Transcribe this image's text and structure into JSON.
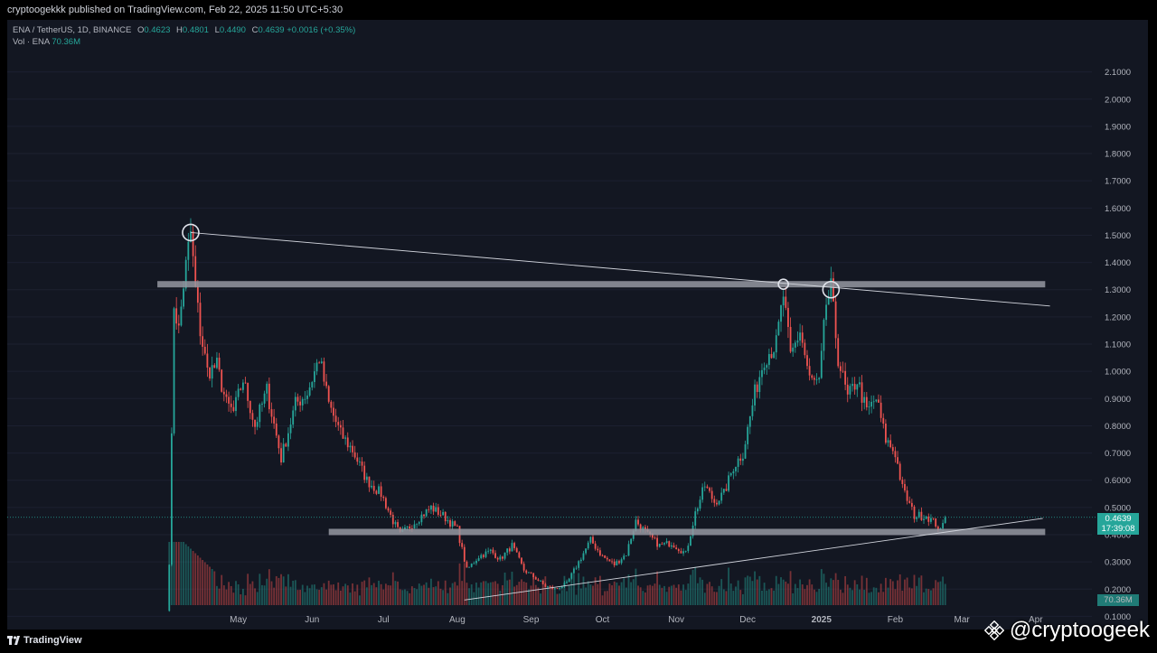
{
  "header": {
    "published_text": "cryptoogekkk published on TradingView.com, Feb 22, 2025 11:50 UTC+5:30"
  },
  "legend": {
    "symbol": "ENA / TetherUS, 1D, BINANCE",
    "o_label": "O",
    "o_value": "0.4623",
    "h_label": "H",
    "h_value": "0.4801",
    "l_label": "L",
    "l_value": "0.4490",
    "c_label": "C",
    "c_value": "0.4639",
    "change": "+0.0016 (+0.35%)",
    "vol_label": "Vol · ENA",
    "vol_value": "70.36M"
  },
  "footer": {
    "brand": "TradingView",
    "watermark": "@cryptoogeek"
  },
  "colors": {
    "background": "#131722",
    "up": "#26a69a",
    "down": "#ef5350",
    "axis_text": "#b2b5be",
    "zone": "#9598a1",
    "trendline": "#d1d4dc"
  },
  "icons": {
    "brand": "tradingview-logo-icon",
    "watermark": "binance-logo-icon"
  },
  "chart_data": {
    "type": "candlestick",
    "symbol": "ENA / TetherUS",
    "timeframe": "1D",
    "exchange": "BINANCE",
    "y_axis": {
      "scale": "linear",
      "range": [
        0.0,
        2.15
      ],
      "ticks": [
        "2.1000",
        "2.0000",
        "1.9000",
        "1.8000",
        "1.7000",
        "1.6000",
        "1.5000",
        "1.4000",
        "1.3000",
        "1.2000",
        "1.1000",
        "1.0000",
        "0.9000",
        "0.8000",
        "0.7000",
        "0.6000",
        "0.5000",
        "0.4000",
        "0.3000",
        "0.2000",
        "0.1000"
      ]
    },
    "x_axis": {
      "start_date": "2024-04-02",
      "ticks": [
        {
          "label": "May",
          "date": "2024-05-01"
        },
        {
          "label": "Jun",
          "date": "2024-06-01"
        },
        {
          "label": "Jul",
          "date": "2024-07-01"
        },
        {
          "label": "Aug",
          "date": "2024-08-01"
        },
        {
          "label": "Sep",
          "date": "2024-09-01"
        },
        {
          "label": "Oct",
          "date": "2024-10-01"
        },
        {
          "label": "Nov",
          "date": "2024-11-01"
        },
        {
          "label": "Dec",
          "date": "2024-12-01"
        },
        {
          "label": "2025",
          "date": "2025-01-01",
          "bold": true
        },
        {
          "label": "Feb",
          "date": "2025-02-01"
        },
        {
          "label": "Mar",
          "date": "2025-03-01"
        },
        {
          "label": "Apr",
          "date": "2025-04-01"
        }
      ]
    },
    "last_price": {
      "value": 0.4639,
      "label": "0.4639",
      "countdown": "17:39:08"
    },
    "volume_badge": "70.36M",
    "price_path": [
      {
        "date": "2024-04-02",
        "price": 0.3
      },
      {
        "date": "2024-04-03",
        "price": 0.75
      },
      {
        "date": "2024-04-04",
        "price": 1.25
      },
      {
        "date": "2024-04-06",
        "price": 1.15
      },
      {
        "date": "2024-04-08",
        "price": 1.32
      },
      {
        "date": "2024-04-10",
        "price": 1.45
      },
      {
        "date": "2024-04-11",
        "price": 1.51
      },
      {
        "date": "2024-04-13",
        "price": 1.3
      },
      {
        "date": "2024-04-15",
        "price": 1.15
      },
      {
        "date": "2024-04-18",
        "price": 1.0
      },
      {
        "date": "2024-04-22",
        "price": 1.02
      },
      {
        "date": "2024-04-26",
        "price": 0.88
      },
      {
        "date": "2024-04-29",
        "price": 0.85
      },
      {
        "date": "2024-05-03",
        "price": 0.97
      },
      {
        "date": "2024-05-08",
        "price": 0.8
      },
      {
        "date": "2024-05-13",
        "price": 0.93
      },
      {
        "date": "2024-05-19",
        "price": 0.68
      },
      {
        "date": "2024-05-25",
        "price": 0.88
      },
      {
        "date": "2024-05-30",
        "price": 0.92
      },
      {
        "date": "2024-06-04",
        "price": 1.05
      },
      {
        "date": "2024-06-08",
        "price": 0.88
      },
      {
        "date": "2024-06-13",
        "price": 0.77
      },
      {
        "date": "2024-06-18",
        "price": 0.71
      },
      {
        "date": "2024-06-24",
        "price": 0.6
      },
      {
        "date": "2024-06-30",
        "price": 0.55
      },
      {
        "date": "2024-07-05",
        "price": 0.45
      },
      {
        "date": "2024-07-08",
        "price": 0.4
      },
      {
        "date": "2024-07-12",
        "price": 0.43
      },
      {
        "date": "2024-07-17",
        "price": 0.47
      },
      {
        "date": "2024-07-21",
        "price": 0.5
      },
      {
        "date": "2024-07-26",
        "price": 0.47
      },
      {
        "date": "2024-08-01",
        "price": 0.42
      },
      {
        "date": "2024-08-05",
        "price": 0.27
      },
      {
        "date": "2024-08-10",
        "price": 0.32
      },
      {
        "date": "2024-08-15",
        "price": 0.34
      },
      {
        "date": "2024-08-19",
        "price": 0.31
      },
      {
        "date": "2024-08-24",
        "price": 0.36
      },
      {
        "date": "2024-08-29",
        "price": 0.27
      },
      {
        "date": "2024-09-03",
        "price": 0.24
      },
      {
        "date": "2024-09-07",
        "price": 0.21
      },
      {
        "date": "2024-09-11",
        "price": 0.2
      },
      {
        "date": "2024-09-16",
        "price": 0.22
      },
      {
        "date": "2024-09-21",
        "price": 0.3
      },
      {
        "date": "2024-09-26",
        "price": 0.38
      },
      {
        "date": "2024-10-01",
        "price": 0.32
      },
      {
        "date": "2024-10-06",
        "price": 0.29
      },
      {
        "date": "2024-10-11",
        "price": 0.33
      },
      {
        "date": "2024-10-15",
        "price": 0.45
      },
      {
        "date": "2024-10-20",
        "price": 0.4
      },
      {
        "date": "2024-10-25",
        "price": 0.36
      },
      {
        "date": "2024-10-30",
        "price": 0.37
      },
      {
        "date": "2024-11-05",
        "price": 0.33
      },
      {
        "date": "2024-11-09",
        "price": 0.48
      },
      {
        "date": "2024-11-13",
        "price": 0.58
      },
      {
        "date": "2024-11-17",
        "price": 0.52
      },
      {
        "date": "2024-11-21",
        "price": 0.55
      },
      {
        "date": "2024-11-25",
        "price": 0.65
      },
      {
        "date": "2024-11-29",
        "price": 0.7
      },
      {
        "date": "2024-12-04",
        "price": 0.92
      },
      {
        "date": "2024-12-08",
        "price": 1.05
      },
      {
        "date": "2024-12-13",
        "price": 1.1
      },
      {
        "date": "2024-12-16",
        "price": 1.28
      },
      {
        "date": "2024-12-19",
        "price": 1.05
      },
      {
        "date": "2024-12-23",
        "price": 1.15
      },
      {
        "date": "2024-12-27",
        "price": 0.97
      },
      {
        "date": "2024-12-31",
        "price": 0.95
      },
      {
        "date": "2025-01-03",
        "price": 1.25
      },
      {
        "date": "2025-01-05",
        "price": 1.3
      },
      {
        "date": "2025-01-08",
        "price": 1.05
      },
      {
        "date": "2025-01-12",
        "price": 0.9
      },
      {
        "date": "2025-01-16",
        "price": 0.97
      },
      {
        "date": "2025-01-20",
        "price": 0.85
      },
      {
        "date": "2025-01-24",
        "price": 0.9
      },
      {
        "date": "2025-01-28",
        "price": 0.75
      },
      {
        "date": "2025-02-01",
        "price": 0.7
      },
      {
        "date": "2025-02-04",
        "price": 0.57
      },
      {
        "date": "2025-02-09",
        "price": 0.47
      },
      {
        "date": "2025-02-14",
        "price": 0.47
      },
      {
        "date": "2025-02-18",
        "price": 0.44
      },
      {
        "date": "2025-02-20",
        "price": 0.41
      },
      {
        "date": "2025-02-22",
        "price": 0.4639
      }
    ],
    "annotations": {
      "horizontal_zones": [
        {
          "price": 1.32,
          "from": "2024-03-28",
          "to": "2025-04-05"
        },
        {
          "price": 0.41,
          "from": "2024-06-08",
          "to": "2025-04-05"
        }
      ],
      "trendlines": [
        {
          "from": {
            "date": "2024-04-11",
            "price": 1.51
          },
          "to": {
            "date": "2025-04-07",
            "price": 1.24
          }
        },
        {
          "from": {
            "date": "2024-08-04",
            "price": 0.16
          },
          "to": {
            "date": "2025-04-04",
            "price": 0.46
          }
        }
      ],
      "circles": [
        {
          "date": "2024-04-11",
          "price": 1.51
        },
        {
          "date": "2024-12-16",
          "price": 1.32
        },
        {
          "date": "2025-01-05",
          "price": 1.3
        }
      ]
    }
  }
}
